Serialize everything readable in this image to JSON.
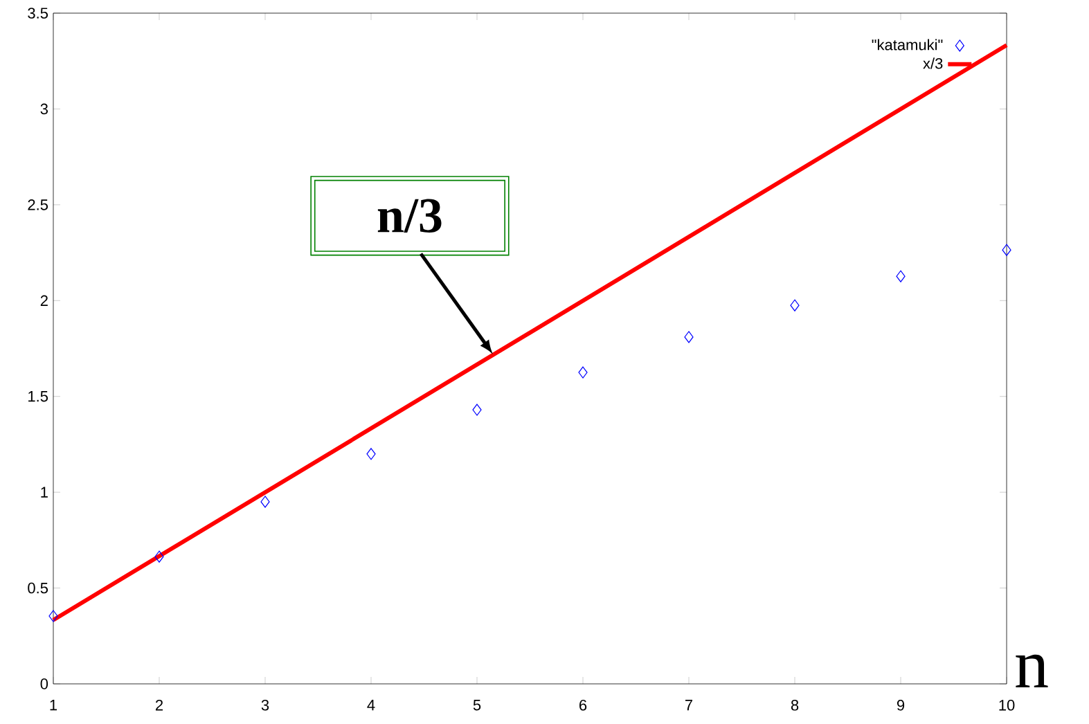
{
  "chart_data": {
    "type": "scatter",
    "xlabel": "n",
    "x": [
      1,
      2,
      3,
      4,
      5,
      6,
      7,
      8,
      9,
      10
    ],
    "series": [
      {
        "name": "\"katamuki\"",
        "color": "#0000ff",
        "marker": "diamond",
        "values": [
          0.354,
          0.664,
          0.95,
          1.2,
          1.43,
          1.625,
          1.81,
          1.975,
          2.127,
          2.264
        ]
      },
      {
        "name": "x/3",
        "type": "line",
        "color": "#ff0000",
        "line_style": "solid",
        "marker": "none",
        "x": [
          1,
          10
        ],
        "values": [
          0.333,
          3.333
        ]
      }
    ],
    "annotations": [
      {
        "text": "**n/3**",
        "x": 5.15,
        "y": 1.72
      }
    ],
    "xlim": [
      1,
      10
    ],
    "ylim": [
      0,
      3.5
    ],
    "xticks": [
      1,
      2,
      3,
      4,
      5,
      6,
      7,
      8,
      9,
      10
    ],
    "yticks": [
      0,
      0.5,
      1,
      1.5,
      2,
      2.5,
      3,
      3.5
    ],
    "grid": false,
    "legend": "top right"
  }
}
